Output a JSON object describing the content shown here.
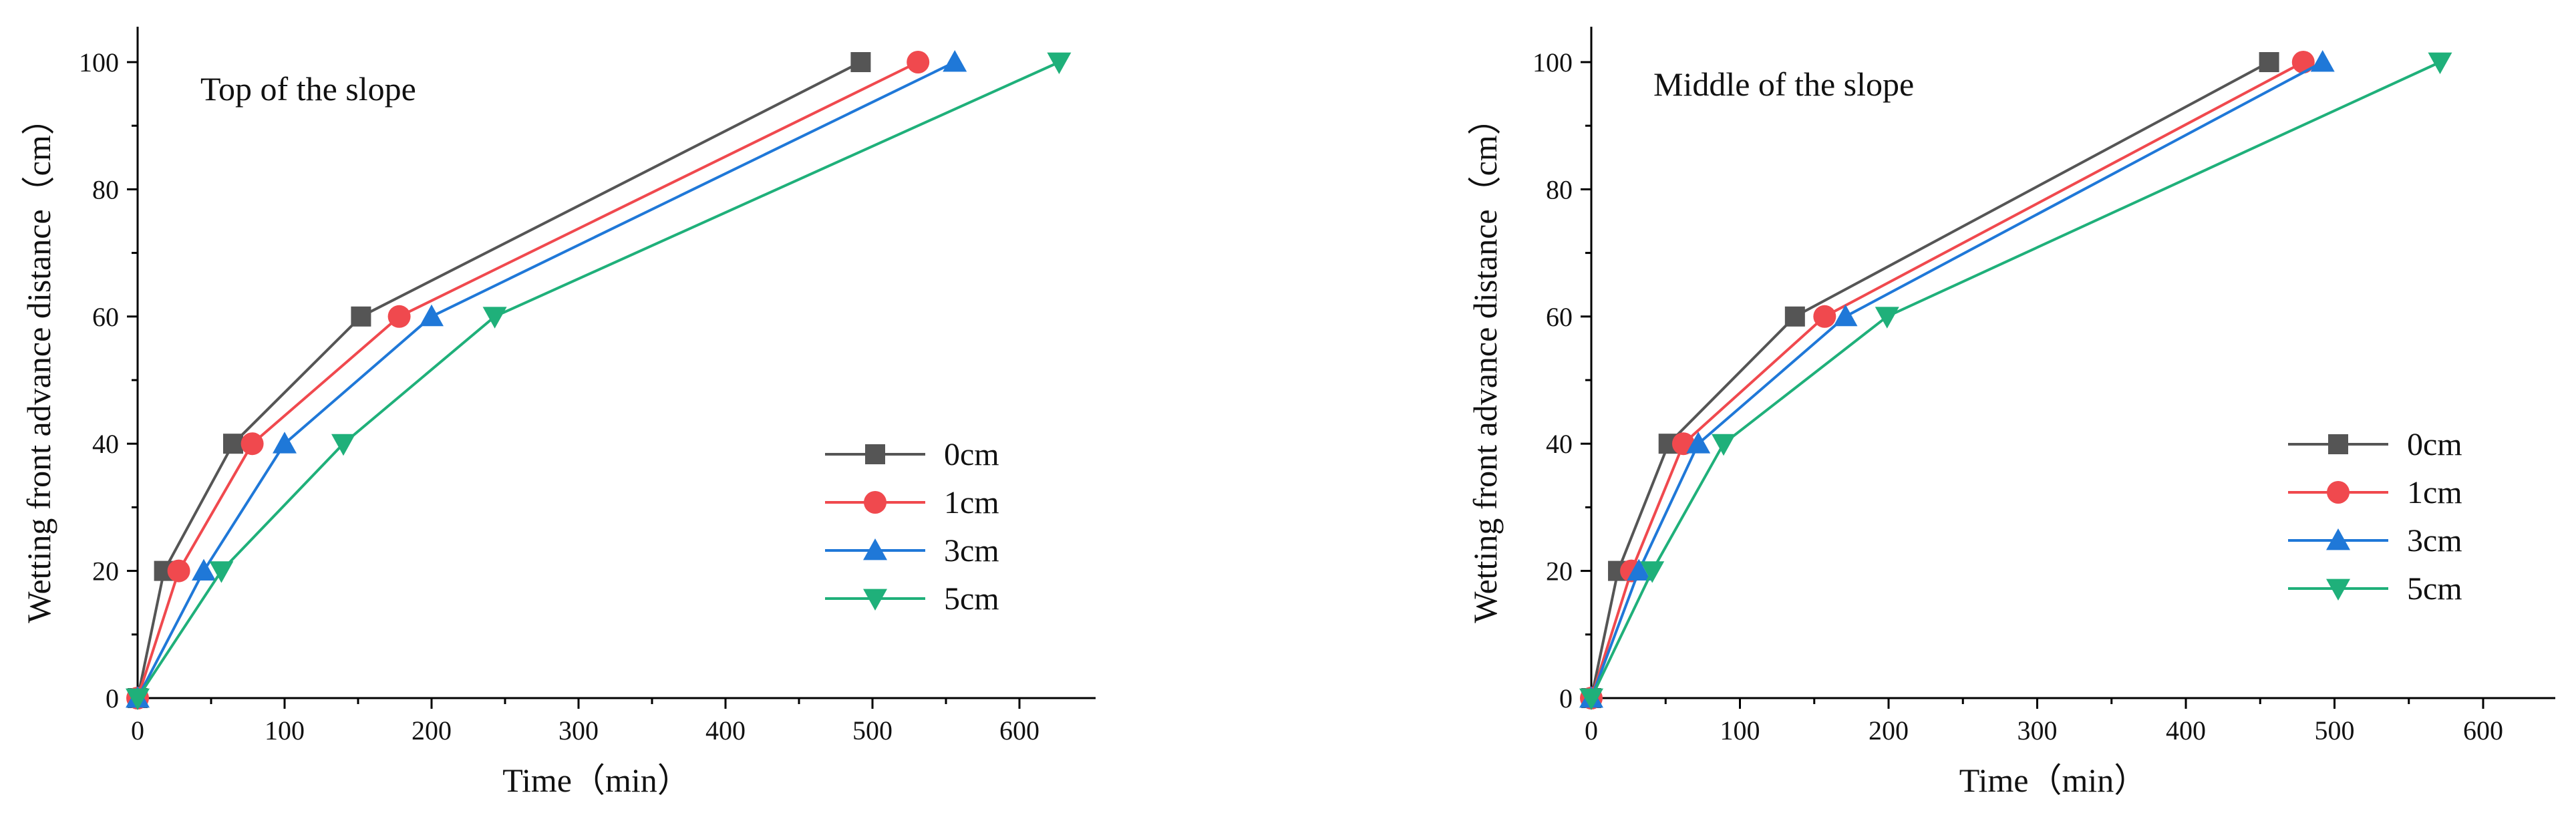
{
  "chart_data": [
    {
      "type": "line",
      "title": "Top of the slope",
      "xlabel": "Time（min）",
      "ylabel": "Wetting front advance distance（cm）",
      "xlim": [
        0,
        650
      ],
      "ylim": [
        0,
        105
      ],
      "xticks": [
        0,
        100,
        200,
        300,
        400,
        500,
        600
      ],
      "yticks": [
        0,
        20,
        40,
        60,
        80,
        100
      ],
      "grid": false,
      "legend_position": "right-middle",
      "series": [
        {
          "name": "0cm",
          "color": "#555555",
          "marker": "square",
          "points": [
            [
              0,
              0
            ],
            [
              18,
              20
            ],
            [
              65,
              40
            ],
            [
              152,
              60
            ],
            [
              492,
              100
            ]
          ]
        },
        {
          "name": "1cm",
          "color": "#f0494e",
          "marker": "circle",
          "points": [
            [
              0,
              0
            ],
            [
              28,
              20
            ],
            [
              78,
              40
            ],
            [
              178,
              60
            ],
            [
              531,
              100
            ]
          ]
        },
        {
          "name": "3cm",
          "color": "#1f78d8",
          "marker": "triangle-up",
          "points": [
            [
              0,
              0
            ],
            [
              45,
              20
            ],
            [
              100,
              40
            ],
            [
              200,
              60
            ],
            [
              556,
              100
            ]
          ]
        },
        {
          "name": "5cm",
          "color": "#1fb07a",
          "marker": "triangle-down",
          "points": [
            [
              0,
              0
            ],
            [
              57,
              20
            ],
            [
              140,
              40
            ],
            [
              243,
              60
            ],
            [
              627,
              100
            ]
          ]
        }
      ]
    },
    {
      "type": "line",
      "title": "Middle of the slope",
      "xlabel": "Time（min）",
      "ylabel": "Wetting front advance distance（cm）",
      "xlim": [
        0,
        620
      ],
      "ylim": [
        0,
        105
      ],
      "xticks": [
        0,
        100,
        200,
        300,
        400,
        500,
        600
      ],
      "yticks": [
        0,
        20,
        40,
        60,
        80,
        100
      ],
      "grid": false,
      "legend_position": "right-middle",
      "series": [
        {
          "name": "0cm",
          "color": "#555555",
          "marker": "square",
          "points": [
            [
              0,
              0
            ],
            [
              18,
              20
            ],
            [
              52,
              40
            ],
            [
              137,
              60
            ],
            [
              456,
              100
            ]
          ]
        },
        {
          "name": "1cm",
          "color": "#f0494e",
          "marker": "circle",
          "points": [
            [
              0,
              0
            ],
            [
              27,
              20
            ],
            [
              62,
              40
            ],
            [
              157,
              60
            ],
            [
              479,
              100
            ]
          ]
        },
        {
          "name": "3cm",
          "color": "#1f78d8",
          "marker": "triangle-up",
          "points": [
            [
              0,
              0
            ],
            [
              32,
              20
            ],
            [
              72,
              40
            ],
            [
              171,
              60
            ],
            [
              492,
              100
            ]
          ]
        },
        {
          "name": "5cm",
          "color": "#1fb07a",
          "marker": "triangle-down",
          "points": [
            [
              0,
              0
            ],
            [
              41,
              20
            ],
            [
              89,
              40
            ],
            [
              199,
              60
            ],
            [
              571,
              100
            ]
          ]
        }
      ]
    }
  ]
}
